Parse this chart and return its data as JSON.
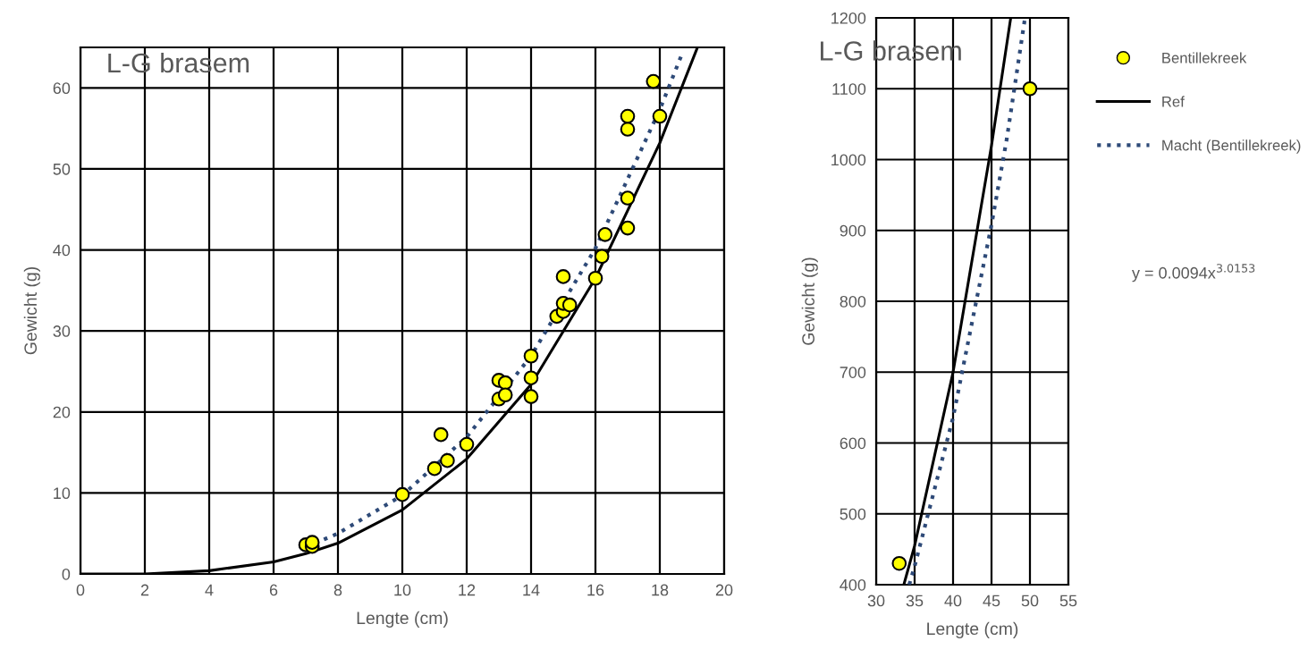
{
  "chart_data": [
    {
      "type": "scatter",
      "title": "L-G brasem",
      "xlabel": "Lengte (cm)",
      "ylabel": "Gewicht (g)",
      "xlim": [
        0,
        20
      ],
      "xticks": [
        0,
        2,
        4,
        6,
        8,
        10,
        12,
        14,
        16,
        18,
        20
      ],
      "ylim": [
        0,
        65
      ],
      "yticks": [
        0,
        10,
        20,
        30,
        40,
        50,
        60
      ],
      "grid": true,
      "legend": false,
      "series": [
        {
          "color": "#ffff00",
          "marker": "circle",
          "x": [
            7.0,
            7.2,
            7.2,
            10,
            11.0,
            11.4,
            11.2,
            12,
            13,
            13,
            13.2,
            13.2,
            14,
            14,
            14,
            14.8,
            15,
            15,
            15.2,
            15,
            16,
            16.2,
            16.3,
            17,
            17,
            17,
            17,
            18,
            17.8
          ],
          "values": [
            3.6,
            3.4,
            3.9,
            9.8,
            13.0,
            14.0,
            17.2,
            16.0,
            21.6,
            23.9,
            23.6,
            22.1,
            21.9,
            24.2,
            26.9,
            31.8,
            32.4,
            33.4,
            33.2,
            36.7,
            36.5,
            39.2,
            41.9,
            42.7,
            46.4,
            54.9,
            56.5,
            56.5,
            60.8
          ]
        },
        {
          "type": "line",
          "color": "#000000",
          "line_style": "solid",
          "x": [
            0,
            2,
            4,
            6,
            7,
            8,
            10,
            12,
            14,
            16,
            18,
            19.17
          ],
          "values": [
            0,
            0.0,
            0.4,
            1.5,
            2.5,
            3.8,
            7.9,
            14.2,
            23.4,
            36.5,
            53.2,
            65
          ]
        },
        {
          "type": "line",
          "color": "#2e4a78",
          "line_style": "dotted",
          "x": [
            7,
            8,
            10,
            12,
            14,
            16,
            18,
            18.7
          ],
          "values": [
            3.3,
            5.0,
            9.7,
            16.9,
            26.9,
            40.2,
            57.3,
            64.3
          ]
        }
      ]
    },
    {
      "type": "scatter",
      "title": "L-G brasem",
      "xlabel": "Lengte (cm)",
      "ylabel": "Gewicht (g)",
      "xlim": [
        30,
        55
      ],
      "xticks": [
        30,
        35,
        40,
        45,
        50,
        55
      ],
      "ylim": [
        400,
        1200
      ],
      "yticks": [
        400,
        500,
        600,
        700,
        800,
        900,
        1000,
        1100,
        1200
      ],
      "grid": true,
      "legend": "right",
      "annotations": [
        "y = 0.0094x$^{3.0153}$"
      ],
      "series": [
        {
          "name": "Bentillekreek",
          "color": "#ffff00",
          "marker": "circle",
          "x": [
            33,
            50
          ],
          "values": [
            430,
            1100
          ]
        },
        {
          "type": "line",
          "name": "Ref",
          "color": "#000000",
          "line_style": "solid",
          "x": [
            33.6,
            35,
            40,
            45,
            47.5
          ],
          "values": [
            400,
            455,
            700,
            1020,
            1200
          ]
        },
        {
          "type": "line",
          "name": "Macht (Bentillekreek)",
          "color": "#2e4a78",
          "line_style": "dotted",
          "x": [
            34.3,
            35,
            40,
            45,
            47,
            49.3
          ],
          "values": [
            400,
            426,
            636,
            908,
            1030,
            1196
          ]
        }
      ]
    }
  ]
}
